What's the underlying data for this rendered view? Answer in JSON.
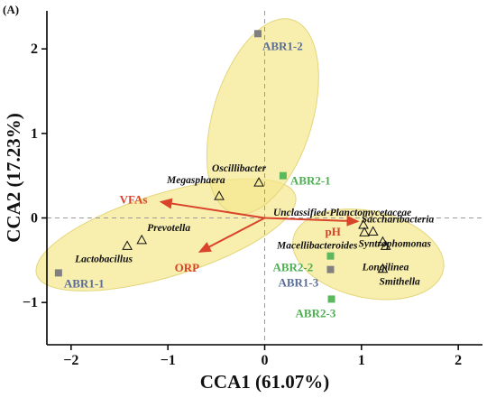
{
  "panel_label": "(A)",
  "colors": {
    "ellipse_fill": "#f5e88f",
    "ellipse_stroke": "#e3d67a",
    "arrow": "#d9432a",
    "env_label": "#d9432a",
    "group_abr1": "#808080",
    "group_abr1_label": "#5a6e99",
    "group_abr2": "#5cb85c",
    "group_abr2_label": "#4caf50",
    "axis": "#000000",
    "zero_line": "#9a9a9a"
  },
  "chart_data": {
    "type": "scatter",
    "xlabel": "CCA1 (61.07%)",
    "ylabel": "CCA2 (17.23%)",
    "xlim": [
      -2.25,
      2.25
    ],
    "ylim": [
      -1.5,
      2.45
    ],
    "xticks": [
      -2,
      -1,
      0,
      1,
      2
    ],
    "yticks": [
      -1,
      0,
      1,
      2
    ],
    "xtick_labels": [
      "−2",
      "−1",
      "0",
      "1",
      "2"
    ],
    "ytick_labels": [
      "−1",
      "0",
      "1",
      "2"
    ],
    "zero_lines": true,
    "samples": [
      {
        "label": "ABR1-1",
        "x": -2.13,
        "y": -0.65,
        "group": "ABR1"
      },
      {
        "label": "ABR1-2",
        "x": -0.07,
        "y": 2.18,
        "group": "ABR1"
      },
      {
        "label": "ABR1-3",
        "x": 0.68,
        "y": -0.61,
        "group": "ABR1"
      },
      {
        "label": "ABR2-1",
        "x": 0.19,
        "y": 0.5,
        "group": "ABR2"
      },
      {
        "label": "ABR2-2",
        "x": 0.68,
        "y": -0.45,
        "group": "ABR2"
      },
      {
        "label": "ABR2-3",
        "x": 0.69,
        "y": -0.96,
        "group": "ABR2"
      }
    ],
    "species": [
      {
        "label": "Megasphaera",
        "x": -0.47,
        "y": 0.26
      },
      {
        "label": "Oscillibacter",
        "x": -0.06,
        "y": 0.42
      },
      {
        "label": "Prevotella",
        "x": -1.27,
        "y": -0.26
      },
      {
        "label": "Lactobacillus",
        "x": -1.42,
        "y": -0.33
      },
      {
        "label": "Unclassified-Planctomycetaceae",
        "x": 1.02,
        "y": -0.08
      },
      {
        "label": "Saccharibacteria",
        "x": 1.12,
        "y": -0.16
      },
      {
        "label": "Syntrophomonas",
        "x": 1.22,
        "y": -0.28
      },
      {
        "label": "Macellibacteroides",
        "x": 1.03,
        "y": -0.17
      },
      {
        "label": "Longilinea",
        "x": 1.25,
        "y": -0.33
      },
      {
        "label": "Smithella",
        "x": 1.22,
        "y": -0.6
      }
    ],
    "env_vectors": [
      {
        "label": "VFAs",
        "x": -1.07,
        "y": 0.19
      },
      {
        "label": "ORP",
        "x": -0.67,
        "y": -0.4
      },
      {
        "label": "pH",
        "x": 0.96,
        "y": -0.04
      }
    ]
  }
}
